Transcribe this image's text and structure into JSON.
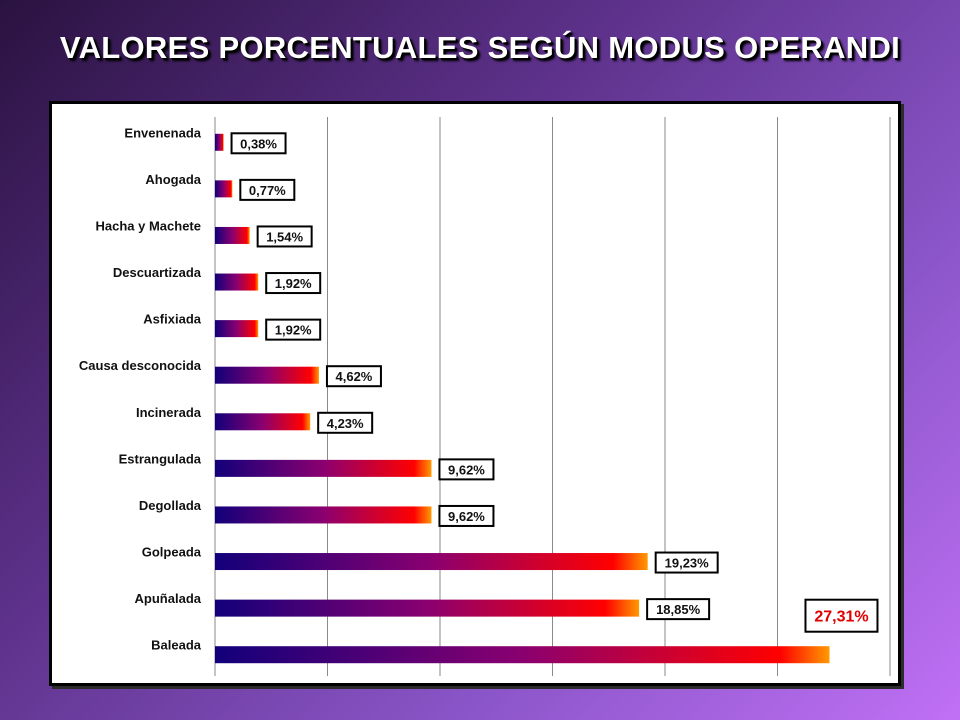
{
  "page": {
    "title": "VALORES PORCENTUALES SEGÚN MODUS OPERANDI"
  },
  "colors": {
    "bar_start": "#12007a",
    "bar_mid": "#8a0070",
    "bar_red": "#ff0000",
    "bar_end": "#ff9a00",
    "highlight_label": "#e00000"
  },
  "chart_data": {
    "type": "bar",
    "orientation": "horizontal",
    "title": "VALORES PORCENTUALES SEGÚN MODUS OPERANDI",
    "xlabel": "",
    "ylabel": "",
    "xlim": [
      0,
      30
    ],
    "grid": "vertical",
    "legend": "none",
    "categories": [
      "Envenenada",
      "Ahogada",
      "Hacha y Machete",
      "Descuartizada",
      "Asfixiada",
      "Causa desconocida",
      "Incinerada",
      "Estrangulada",
      "Degollada",
      "Golpeada",
      "Apuñalada",
      "Baleada"
    ],
    "values": [
      0.38,
      0.77,
      1.54,
      1.92,
      1.92,
      4.62,
      4.23,
      9.62,
      9.62,
      19.23,
      18.85,
      27.31
    ],
    "data_labels": [
      "0,38%",
      "0,77%",
      "1,54%",
      "1,92%",
      "1,92%",
      "4,62%",
      "4,23%",
      "9,62%",
      "9,62%",
      "19,23%",
      "18,85%",
      "27,31%"
    ],
    "highlighted_label": "27,31%"
  }
}
